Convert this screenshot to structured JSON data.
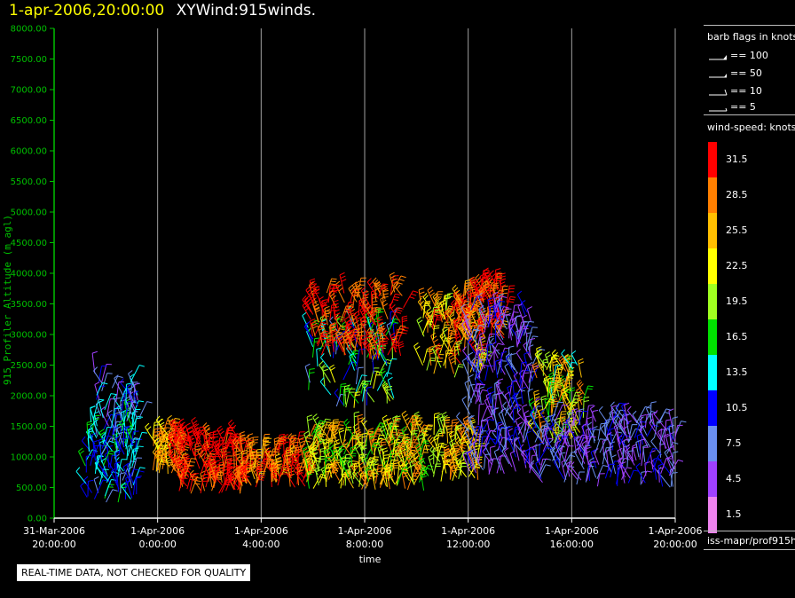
{
  "header": {
    "timestamp": "1-apr-2006,20:00:00",
    "plot_title": "XYWind:915winds."
  },
  "legend": {
    "flags_title": "barb flags in knots",
    "flags": [
      {
        "label": "== 100",
        "type": "pennant"
      },
      {
        "label": "== 50",
        "type": "pennant"
      },
      {
        "label": "== 10",
        "type": "full"
      },
      {
        "label": "== 5",
        "type": "half"
      }
    ],
    "colorbar_title": "wind-speed: knots",
    "colorbar": [
      {
        "label": "31.5",
        "color": "#ff0000"
      },
      {
        "label": "28.5",
        "color": "#ff7f00"
      },
      {
        "label": "25.5",
        "color": "#ffbf00"
      },
      {
        "label": "22.5",
        "color": "#ffff00"
      },
      {
        "label": "19.5",
        "color": "#a0ff20"
      },
      {
        "label": "16.5",
        "color": "#00e000"
      },
      {
        "label": "13.5",
        "color": "#00ffff"
      },
      {
        "label": "10.5",
        "color": "#0000ff"
      },
      {
        "label": "7.5",
        "color": "#6a8ff0"
      },
      {
        "label": "4.5",
        "color": "#a040ff"
      },
      {
        "label": "1.5",
        "color": "#ee82ee"
      }
    ]
  },
  "source_label": "iss-mapr/prof915h",
  "quality_note": "REAL-TIME DATA, NOT CHECKED FOR QUALITY",
  "colors": {
    "axis": "#00c000",
    "grid": "#a0a0a0",
    "background": "#000000"
  },
  "chart_data": {
    "type": "scatter",
    "title": "XYWind:915winds.",
    "xlabel": "time",
    "ylabel": "915 Profiler Altitude (m agl)",
    "ylim": [
      0,
      8000
    ],
    "xlim_hours": [
      0,
      24
    ],
    "grid": true,
    "y_ticks": [
      "0.00",
      "500.00",
      "1000.00",
      "1500.00",
      "2000.00",
      "2500.00",
      "3000.00",
      "3500.00",
      "4000.00",
      "4500.00",
      "5000.00",
      "5500.00",
      "6000.00",
      "6500.00",
      "7000.00",
      "7500.00",
      "8000.00"
    ],
    "x_ticks": [
      {
        "line1": "31-Mar-2006",
        "line2": "20:00:00",
        "hour": 0
      },
      {
        "line1": "1-Apr-2006",
        "line2": "0:00:00",
        "hour": 4
      },
      {
        "line1": "1-Apr-2006",
        "line2": "4:00:00",
        "hour": 8
      },
      {
        "line1": "1-Apr-2006",
        "line2": "8:00:00",
        "hour": 12
      },
      {
        "line1": "1-Apr-2006",
        "line2": "12:00:00",
        "hour": 16
      },
      {
        "line1": "1-Apr-2006",
        "line2": "16:00:00",
        "hour": 20
      },
      {
        "line1": "1-Apr-2006",
        "line2": "20:00:00",
        "hour": 24
      }
    ],
    "barb_regions": [
      {
        "h0": 1.2,
        "h1": 3.2,
        "a0": 250,
        "a1": 1700,
        "speed0": 8,
        "speed1": 16,
        "count": 120,
        "seed": 11
      },
      {
        "h0": 1.4,
        "h1": 3.3,
        "a0": 1500,
        "a1": 2400,
        "speed0": 5,
        "speed1": 14,
        "count": 40,
        "seed": 12
      },
      {
        "h0": 3.8,
        "h1": 4.8,
        "a0": 700,
        "a1": 1400,
        "speed0": 22,
        "speed1": 30,
        "count": 45,
        "seed": 13
      },
      {
        "h0": 4.6,
        "h1": 7.2,
        "a0": 400,
        "a1": 1300,
        "speed0": 28,
        "speed1": 34,
        "count": 140,
        "seed": 14
      },
      {
        "h0": 7.2,
        "h1": 9.9,
        "a0": 500,
        "a1": 1100,
        "speed0": 24,
        "speed1": 33,
        "count": 110,
        "seed": 15
      },
      {
        "h0": 9.8,
        "h1": 14.5,
        "a0": 450,
        "a1": 1400,
        "speed0": 16,
        "speed1": 30,
        "count": 220,
        "seed": 16
      },
      {
        "h0": 14.6,
        "h1": 16.4,
        "a0": 600,
        "a1": 1400,
        "speed0": 20,
        "speed1": 29,
        "count": 70,
        "seed": 17
      },
      {
        "h0": 9.8,
        "h1": 13.2,
        "a0": 1800,
        "a1": 3200,
        "speed0": 8,
        "speed1": 22,
        "count": 90,
        "seed": 18
      },
      {
        "h0": 9.9,
        "h1": 13.5,
        "a0": 2600,
        "a1": 3700,
        "speed0": 28,
        "speed1": 34,
        "count": 120,
        "seed": 19
      },
      {
        "h0": 14.2,
        "h1": 16.6,
        "a0": 2300,
        "a1": 3500,
        "speed0": 20,
        "speed1": 32,
        "count": 100,
        "seed": 20
      },
      {
        "h0": 15.5,
        "h1": 17.5,
        "a0": 2900,
        "a1": 3800,
        "speed0": 26,
        "speed1": 34,
        "count": 80,
        "seed": 21
      },
      {
        "h0": 16.0,
        "h1": 18.5,
        "a0": 700,
        "a1": 3400,
        "speed0": 3,
        "speed1": 11,
        "count": 220,
        "seed": 22
      },
      {
        "h0": 18.6,
        "h1": 20.5,
        "a0": 1200,
        "a1": 2500,
        "speed0": 14,
        "speed1": 30,
        "count": 90,
        "seed": 23
      },
      {
        "h0": 18.5,
        "h1": 24.0,
        "a0": 500,
        "a1": 1600,
        "speed0": 3,
        "speed1": 10,
        "count": 220,
        "seed": 24
      }
    ]
  }
}
